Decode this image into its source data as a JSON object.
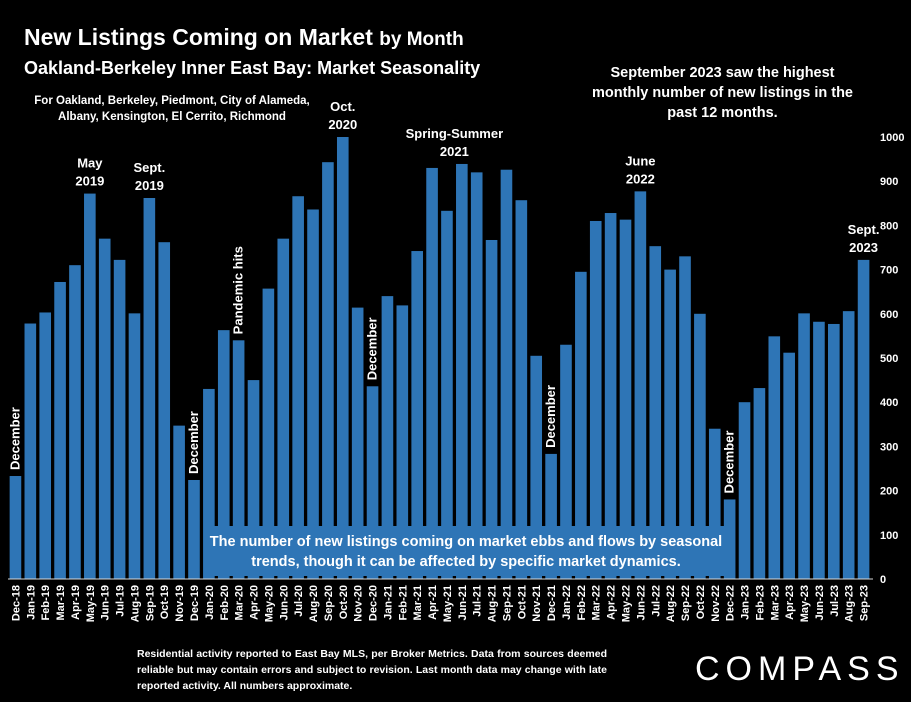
{
  "title": "New Listings Coming on Market",
  "title_suffix": "by Month",
  "subtitle": "Oakland-Berkeley Inner East Bay: Market Seasonality",
  "cities_note": "For Oakland, Berkeley, Piedmont, City of Alameda, Albany, Kensington, El Cerrito, Richmond",
  "highlight_note": "September 2023 saw the highest monthly number of new listings in the past 12 months.",
  "callout_note": "The number of new listings coming on market ebbs and flows by seasonal trends, though it can be affected by specific market dynamics.",
  "footer_note": "Residential activity reported to East Bay MLS, per Broker Metrics. Data from sources deemed reliable but may contain errors and subject to revision. Last month data may change with late reported activity. All numbers approximate.",
  "logo_text": "COMPASS",
  "colors": {
    "bar": "#2e75b6",
    "background": "#000000",
    "text": "#ffffff"
  },
  "chart_data": {
    "type": "bar",
    "title": "New Listings Coming on Market by Month",
    "xlabel": "",
    "ylabel": "",
    "ylim": [
      0,
      1000
    ],
    "yticks": [
      0,
      100,
      200,
      300,
      400,
      500,
      600,
      700,
      800,
      900,
      1000
    ],
    "y_axis_position": "right",
    "grid": false,
    "legend": "none",
    "categories": [
      "Dec-18",
      "Jan-19",
      "Feb-19",
      "Mar-19",
      "Apr-19",
      "May-19",
      "Jun-19",
      "Jul-19",
      "Aug-19",
      "Sep-19",
      "Oct-19",
      "Nov-19",
      "Dec-19",
      "Jan-20",
      "Feb-20",
      "Mar-20",
      "Apr-20",
      "May-20",
      "Jun-20",
      "Jul-20",
      "Aug-20",
      "Sep-20",
      "Oct-20",
      "Nov-20",
      "Dec-20",
      "Jan-21",
      "Feb-21",
      "Mar-21",
      "Apr-21",
      "May-21",
      "Jun-21",
      "Jul-21",
      "Aug-21",
      "Sep-21",
      "Oct-21",
      "Nov-21",
      "Dec-21",
      "Jan-22",
      "Feb-22",
      "Mar-22",
      "Apr-22",
      "May-22",
      "Jun-22",
      "Jul-22",
      "Aug-22",
      "Sep-22",
      "Oct-22",
      "Nov-22",
      "Dec-22",
      "Jan-23",
      "Feb-23",
      "Mar-23",
      "Apr-23",
      "May-23",
      "Jun-23",
      "Jul-23",
      "Aug-23",
      "Sep-23"
    ],
    "values": [
      233,
      578,
      603,
      672,
      710,
      872,
      770,
      722,
      601,
      862,
      762,
      347,
      224,
      430,
      563,
      540,
      450,
      657,
      770,
      866,
      836,
      943,
      1000,
      614,
      436,
      640,
      619,
      742,
      930,
      833,
      939,
      920,
      767,
      926,
      857,
      505,
      283,
      530,
      695,
      810,
      828,
      813,
      877,
      753,
      700,
      730,
      600,
      340,
      180,
      400,
      432,
      549,
      512,
      601,
      582,
      577,
      606,
      722
    ],
    "annotations": [
      {
        "text": "December",
        "index": 0,
        "rotated": true
      },
      {
        "text": "May 2019",
        "index": 5,
        "rotated": false
      },
      {
        "text": "Sept. 2019",
        "index": 9,
        "rotated": false
      },
      {
        "text": "December",
        "index": 12,
        "rotated": true
      },
      {
        "text": "Pandemic hits",
        "index": 15,
        "rotated": true
      },
      {
        "text": "Oct. 2020",
        "index": 22,
        "rotated": false
      },
      {
        "text": "December",
        "index": 24,
        "rotated": true
      },
      {
        "text": "Spring-Summer 2021",
        "index": 29.5,
        "rotated": false
      },
      {
        "text": "December",
        "index": 36,
        "rotated": true
      },
      {
        "text": "June 2022",
        "index": 42,
        "rotated": false
      },
      {
        "text": "December",
        "index": 48,
        "rotated": true
      },
      {
        "text": "Sept. 2023",
        "index": 57,
        "rotated": false
      }
    ]
  }
}
